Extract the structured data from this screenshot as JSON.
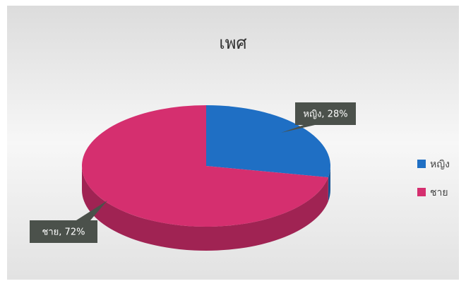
{
  "chart_data": {
    "type": "pie",
    "title": "เพศ",
    "categories": [
      "หญิง",
      "ชาย"
    ],
    "values": [
      28,
      72
    ],
    "value_labels": [
      "หญิง, 28%",
      "ชาย, 72%"
    ],
    "colors": [
      "#1f6fc4",
      "#d52f6f"
    ],
    "legend": "right"
  }
}
